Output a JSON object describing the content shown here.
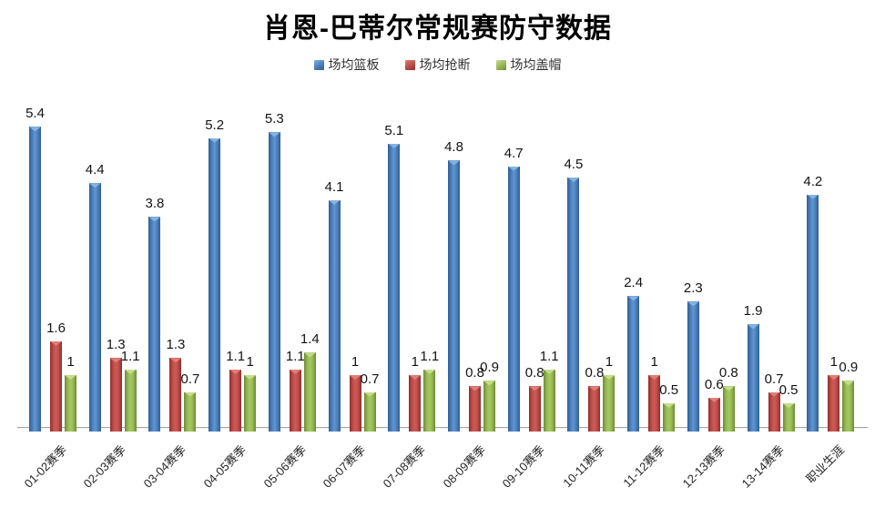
{
  "chart_data": {
    "type": "bar",
    "title": "肖恩-巴蒂尔常规赛防守数据",
    "categories": [
      "01-02赛季",
      "02-03赛季",
      "03-04赛季",
      "04-05赛季",
      "05-06赛季",
      "06-07赛季",
      "07-08赛季",
      "08-09赛季",
      "09-10赛季",
      "10-11赛季",
      "11-12赛季",
      "12-13赛季",
      "13-14赛季",
      "职业生涯"
    ],
    "series": [
      {
        "key": "rebounds-per-game",
        "name": "场均篮板",
        "color": "#4F81BD",
        "color_dark": "#305f94",
        "color_mid": "#5d97d2",
        "color_highlight": "#85b4e0",
        "values": [
          5.4,
          4.4,
          3.8,
          5.2,
          5.3,
          4.1,
          5.1,
          4.8,
          4.7,
          4.5,
          2.4,
          2.3,
          1.9,
          4.2
        ]
      },
      {
        "key": "steals-per-game",
        "name": "场均抢断",
        "color": "#C0504D",
        "color_dark": "#8e2f2c",
        "color_mid": "#ce5a56",
        "color_highlight": "#e07e77",
        "values": [
          1.6,
          1.3,
          1.3,
          1.1,
          1.1,
          1,
          1,
          0.8,
          0.8,
          0.8,
          1,
          0.6,
          0.7,
          1
        ]
      },
      {
        "key": "blocks-per-game",
        "name": "场均盖帽",
        "color": "#9BBB59",
        "color_dark": "#6c8b34",
        "color_mid": "#a3c85c",
        "color_highlight": "#c4dd8a",
        "values": [
          1,
          1.1,
          0.7,
          1,
          1.4,
          0.7,
          1.1,
          0.9,
          1.1,
          1,
          0.5,
          0.8,
          0.5,
          0.9
        ]
      }
    ],
    "xlabel": "",
    "ylabel": "",
    "ylim": [
      0,
      5.8
    ],
    "grid": false,
    "legend_position": "top",
    "data_labels": true,
    "axis_line_color": "#a3a3a3",
    "background": "#ffffff"
  }
}
